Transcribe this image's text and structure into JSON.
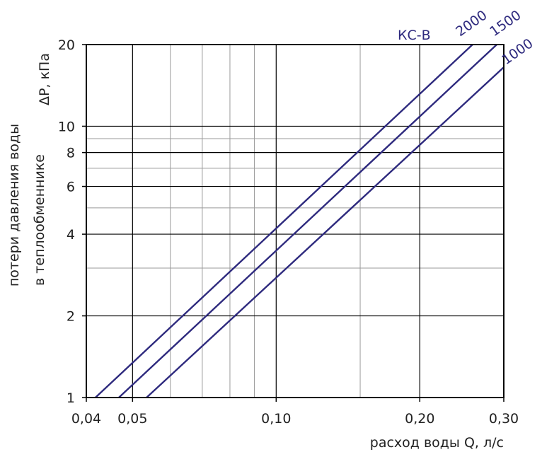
{
  "chart_data": {
    "type": "line",
    "xscale": "log",
    "yscale": "log",
    "xlim": [
      0.04,
      0.3
    ],
    "ylim": [
      1,
      20
    ],
    "xticks": [
      {
        "value": 0.04,
        "label": "0,04"
      },
      {
        "value": 0.05,
        "label": "0,05"
      },
      {
        "value": 0.1,
        "label": "0,10"
      },
      {
        "value": 0.2,
        "label": "0,20"
      },
      {
        "value": 0.3,
        "label": "0,30"
      }
    ],
    "yticks": [
      {
        "value": 1,
        "label": "1"
      },
      {
        "value": 2,
        "label": "2"
      },
      {
        "value": 4,
        "label": "4"
      },
      {
        "value": 6,
        "label": "6"
      },
      {
        "value": 8,
        "label": "8"
      },
      {
        "value": 10,
        "label": "10"
      },
      {
        "value": 20,
        "label": "20"
      }
    ],
    "x_minor_grid": [
      0.06,
      0.07,
      0.08,
      0.09,
      0.15
    ],
    "y_minor_grid": [
      3,
      5,
      7,
      9
    ],
    "xlabel": "расход воды Q, л/с",
    "ylabel_unit": "ΔP, кПа",
    "ylabel_lines": [
      "потери давления воды",
      "в теплообменнике"
    ],
    "annotation": "КС-В",
    "grid": true,
    "series": [
      {
        "name": "2000",
        "x": [
          0.0418,
          0.258
        ],
        "y": [
          1,
          20
        ]
      },
      {
        "name": "1500",
        "x": [
          0.0468,
          0.29
        ],
        "y": [
          1,
          20
        ]
      },
      {
        "name": "1000",
        "x": [
          0.0535,
          0.3
        ],
        "y": [
          1,
          16.5
        ]
      }
    ]
  },
  "colors": {
    "series": "#2e2a7e",
    "axis": "#000000",
    "major_grid": "#000000",
    "minor_grid": "#9a9a9a",
    "text": "#222222"
  }
}
